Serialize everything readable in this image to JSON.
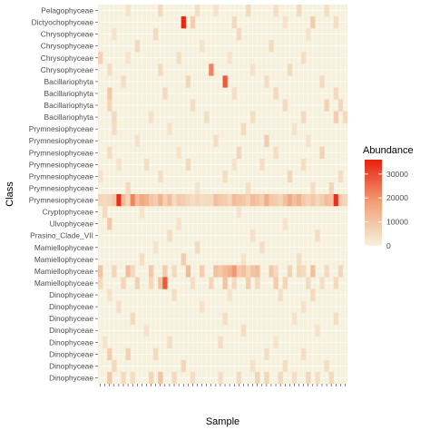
{
  "chart_data": {
    "type": "heatmap",
    "xlabel": "Sample",
    "ylabel": "Class",
    "legend": {
      "title": "Abundance",
      "ticks": [
        0,
        10000,
        20000,
        30000
      ],
      "position": "right",
      "max": 36000
    },
    "colors": {
      "low": "#f5f1dc",
      "high": "#e8200e",
      "panel": "#f5f1dc",
      "grid": "#ffffff"
    },
    "rows": [
      "Pelagophyceae",
      "Dictyochophyceae",
      "Chrysophyceae",
      "Chrysophyceae",
      "Chrysophyceae",
      "Chrysophyceae",
      "Bacillariophyta",
      "Bacillariophyta",
      "Bacillariophyta",
      "Bacillariophyta",
      "Prymnesiophyceae",
      "Prymnesiophyceae",
      "Prymnesiophyceae",
      "Prymnesiophyceae",
      "Prymnesiophyceae",
      "Prymnesiophyceae",
      "Prymnesiophyceae",
      "Cryptophyceae",
      "Ulvophyceae",
      "Prasino_Clade_VII",
      "Mamiellophyceae",
      "Mamiellophyceae",
      "Mamiellophyceae",
      "Mamiellophyceae",
      "Dinophyceae",
      "Dinophyceae",
      "Dinophyceae",
      "Dinophyceae",
      "Dinophyceae",
      "Dinophyceae",
      "Dinophyceae",
      "Dinophyceae"
    ],
    "n_samples": 54,
    "cells": [
      [
        0,
        6,
        3000
      ],
      [
        0,
        13,
        5000
      ],
      [
        0,
        21,
        4000
      ],
      [
        0,
        25,
        3000
      ],
      [
        0,
        32,
        5000
      ],
      [
        0,
        38,
        4000
      ],
      [
        0,
        43,
        5000
      ],
      [
        0,
        49,
        4000
      ],
      [
        1,
        18,
        35000
      ],
      [
        1,
        20,
        8000
      ],
      [
        1,
        29,
        5000
      ],
      [
        1,
        40,
        3000
      ],
      [
        1,
        46,
        8000
      ],
      [
        1,
        51,
        4000
      ],
      [
        2,
        3,
        3000
      ],
      [
        2,
        12,
        5000
      ],
      [
        2,
        30,
        5000
      ],
      [
        2,
        45,
        3000
      ],
      [
        3,
        8,
        5000
      ],
      [
        3,
        22,
        3000
      ],
      [
        3,
        37,
        5000
      ],
      [
        4,
        0,
        7000
      ],
      [
        4,
        6,
        3000
      ],
      [
        4,
        17,
        4000
      ],
      [
        4,
        28,
        3000
      ],
      [
        4,
        44,
        4000
      ],
      [
        5,
        2,
        4000
      ],
      [
        5,
        13,
        5000
      ],
      [
        5,
        24,
        22000
      ],
      [
        5,
        33,
        3000
      ],
      [
        5,
        41,
        5000
      ],
      [
        6,
        5,
        4000
      ],
      [
        6,
        19,
        6000
      ],
      [
        6,
        27,
        28000
      ],
      [
        6,
        36,
        4000
      ],
      [
        6,
        48,
        5000
      ],
      [
        7,
        2,
        9000
      ],
      [
        7,
        14,
        5000
      ],
      [
        7,
        29,
        4000
      ],
      [
        7,
        38,
        5000
      ],
      [
        7,
        51,
        5000
      ],
      [
        8,
        2,
        6000
      ],
      [
        8,
        20,
        4000
      ],
      [
        8,
        40,
        5000
      ],
      [
        8,
        49,
        7000
      ],
      [
        8,
        52,
        6000
      ],
      [
        9,
        3,
        5000
      ],
      [
        9,
        11,
        3000
      ],
      [
        9,
        23,
        4000
      ],
      [
        9,
        33,
        4000
      ],
      [
        9,
        44,
        5000
      ],
      [
        9,
        51,
        8000
      ],
      [
        9,
        53,
        5000
      ],
      [
        10,
        3,
        4000
      ],
      [
        10,
        15,
        3000
      ],
      [
        10,
        31,
        5000
      ],
      [
        10,
        42,
        3000
      ],
      [
        11,
        8,
        3000
      ],
      [
        11,
        25,
        4000
      ],
      [
        11,
        36,
        8000
      ],
      [
        11,
        45,
        3000
      ],
      [
        12,
        2,
        4000
      ],
      [
        12,
        17,
        3000
      ],
      [
        12,
        30,
        6000
      ],
      [
        12,
        38,
        4000
      ],
      [
        12,
        48,
        7000
      ],
      [
        13,
        4,
        3000
      ],
      [
        13,
        10,
        4000
      ],
      [
        13,
        19,
        5000
      ],
      [
        13,
        29,
        3000
      ],
      [
        13,
        35,
        4000
      ],
      [
        13,
        44,
        4000
      ],
      [
        14,
        0,
        3000
      ],
      [
        14,
        13,
        4000
      ],
      [
        14,
        27,
        4000
      ],
      [
        14,
        41,
        6000
      ],
      [
        14,
        52,
        4000
      ],
      [
        15,
        6,
        5000
      ],
      [
        15,
        21,
        3000
      ],
      [
        15,
        32,
        4000
      ],
      [
        15,
        46,
        4000
      ],
      [
        15,
        50,
        6000
      ],
      [
        16,
        0,
        6000
      ],
      [
        16,
        1,
        5000
      ],
      [
        16,
        2,
        6000
      ],
      [
        16,
        3,
        9000
      ],
      [
        16,
        4,
        34000
      ],
      [
        16,
        5,
        12000
      ],
      [
        16,
        6,
        6000
      ],
      [
        16,
        7,
        22000
      ],
      [
        16,
        8,
        12000
      ],
      [
        16,
        9,
        16000
      ],
      [
        16,
        10,
        14000
      ],
      [
        16,
        11,
        10000
      ],
      [
        16,
        12,
        8000
      ],
      [
        16,
        13,
        14000
      ],
      [
        16,
        14,
        7000
      ],
      [
        16,
        15,
        11000
      ],
      [
        16,
        16,
        5000
      ],
      [
        16,
        17,
        9000
      ],
      [
        16,
        18,
        8000
      ],
      [
        16,
        19,
        6000
      ],
      [
        16,
        20,
        4000
      ],
      [
        16,
        21,
        6000
      ],
      [
        16,
        22,
        4000
      ],
      [
        16,
        23,
        5000
      ],
      [
        16,
        24,
        5000
      ],
      [
        16,
        25,
        11000
      ],
      [
        16,
        26,
        9000
      ],
      [
        16,
        27,
        8000
      ],
      [
        16,
        28,
        6000
      ],
      [
        16,
        29,
        12000
      ],
      [
        16,
        30,
        10000
      ],
      [
        16,
        31,
        9000
      ],
      [
        16,
        32,
        7000
      ],
      [
        16,
        33,
        12000
      ],
      [
        16,
        34,
        10000
      ],
      [
        16,
        35,
        8000
      ],
      [
        16,
        36,
        15000
      ],
      [
        16,
        37,
        9000
      ],
      [
        16,
        38,
        8000
      ],
      [
        16,
        39,
        6000
      ],
      [
        16,
        40,
        11000
      ],
      [
        16,
        41,
        16000
      ],
      [
        16,
        42,
        11000
      ],
      [
        16,
        43,
        14000
      ],
      [
        16,
        44,
        9000
      ],
      [
        16,
        45,
        7000
      ],
      [
        16,
        46,
        9000
      ],
      [
        16,
        47,
        6000
      ],
      [
        16,
        48,
        8000
      ],
      [
        16,
        49,
        12000
      ],
      [
        16,
        50,
        10000
      ],
      [
        16,
        51,
        34000
      ],
      [
        16,
        52,
        8000
      ],
      [
        16,
        53,
        6000
      ],
      [
        17,
        1,
        5000
      ],
      [
        17,
        9,
        3000
      ],
      [
        17,
        30,
        3000
      ],
      [
        18,
        2,
        9000
      ],
      [
        18,
        17,
        3000
      ],
      [
        18,
        40,
        3000
      ],
      [
        19,
        15,
        4000
      ],
      [
        19,
        33,
        3000
      ],
      [
        19,
        47,
        4000
      ],
      [
        20,
        12,
        3000
      ],
      [
        20,
        21,
        5000
      ],
      [
        20,
        35,
        4000
      ],
      [
        21,
        9,
        4000
      ],
      [
        21,
        18,
        8000
      ],
      [
        21,
        31,
        3000
      ],
      [
        21,
        43,
        4000
      ],
      [
        22,
        0,
        10000
      ],
      [
        22,
        3,
        6000
      ],
      [
        22,
        6,
        12000
      ],
      [
        22,
        7,
        5000
      ],
      [
        22,
        11,
        9000
      ],
      [
        22,
        14,
        8000
      ],
      [
        22,
        16,
        5000
      ],
      [
        22,
        19,
        12000
      ],
      [
        22,
        22,
        8000
      ],
      [
        22,
        25,
        11000
      ],
      [
        22,
        26,
        9000
      ],
      [
        22,
        27,
        12000
      ],
      [
        22,
        28,
        14000
      ],
      [
        22,
        29,
        19000
      ],
      [
        22,
        30,
        9000
      ],
      [
        22,
        31,
        11000
      ],
      [
        22,
        32,
        6000
      ],
      [
        22,
        33,
        10000
      ],
      [
        22,
        34,
        12000
      ],
      [
        22,
        37,
        9000
      ],
      [
        22,
        38,
        5000
      ],
      [
        22,
        41,
        7000
      ],
      [
        22,
        43,
        6000
      ],
      [
        22,
        44,
        5000
      ],
      [
        22,
        46,
        11000
      ],
      [
        22,
        49,
        5000
      ],
      [
        22,
        52,
        6000
      ],
      [
        23,
        0,
        5000
      ],
      [
        23,
        5,
        6000
      ],
      [
        23,
        8,
        7000
      ],
      [
        23,
        11,
        6000
      ],
      [
        23,
        13,
        10000
      ],
      [
        23,
        14,
        28000
      ],
      [
        23,
        20,
        4000
      ],
      [
        23,
        24,
        6000
      ],
      [
        23,
        27,
        10000
      ],
      [
        23,
        29,
        5000
      ],
      [
        23,
        32,
        8000
      ],
      [
        23,
        34,
        5000
      ],
      [
        23,
        38,
        8000
      ],
      [
        23,
        40,
        6000
      ],
      [
        23,
        45,
        5000
      ],
      [
        23,
        48,
        4000
      ],
      [
        23,
        51,
        5000
      ],
      [
        24,
        2,
        3000
      ],
      [
        24,
        16,
        4000
      ],
      [
        24,
        28,
        3000
      ],
      [
        24,
        39,
        4000
      ],
      [
        24,
        46,
        5000
      ],
      [
        25,
        4,
        4000
      ],
      [
        25,
        22,
        3000
      ],
      [
        25,
        44,
        3000
      ],
      [
        26,
        7,
        5000
      ],
      [
        26,
        27,
        4000
      ],
      [
        26,
        42,
        3000
      ],
      [
        26,
        51,
        4000
      ],
      [
        27,
        10,
        3000
      ],
      [
        27,
        31,
        4000
      ],
      [
        27,
        47,
        3000
      ],
      [
        28,
        1,
        3000
      ],
      [
        28,
        15,
        4000
      ],
      [
        28,
        26,
        4000
      ],
      [
        28,
        38,
        3000
      ],
      [
        29,
        2,
        8000
      ],
      [
        29,
        6,
        7000
      ],
      [
        29,
        12,
        5000
      ],
      [
        29,
        36,
        4000
      ],
      [
        29,
        44,
        4000
      ],
      [
        30,
        3,
        5000
      ],
      [
        30,
        18,
        6000
      ],
      [
        30,
        33,
        3000
      ],
      [
        30,
        40,
        4000
      ],
      [
        30,
        49,
        4000
      ],
      [
        31,
        2,
        9000
      ],
      [
        31,
        5,
        5000
      ],
      [
        31,
        7,
        4000
      ],
      [
        31,
        11,
        6000
      ],
      [
        31,
        13,
        10000
      ],
      [
        31,
        16,
        5000
      ],
      [
        31,
        20,
        4000
      ],
      [
        31,
        26,
        4000
      ],
      [
        31,
        30,
        5000
      ],
      [
        31,
        34,
        7000
      ],
      [
        31,
        36,
        6000
      ],
      [
        31,
        39,
        5000
      ],
      [
        31,
        42,
        4000
      ],
      [
        31,
        45,
        6000
      ],
      [
        31,
        47,
        4000
      ],
      [
        31,
        50,
        5000
      ]
    ]
  }
}
